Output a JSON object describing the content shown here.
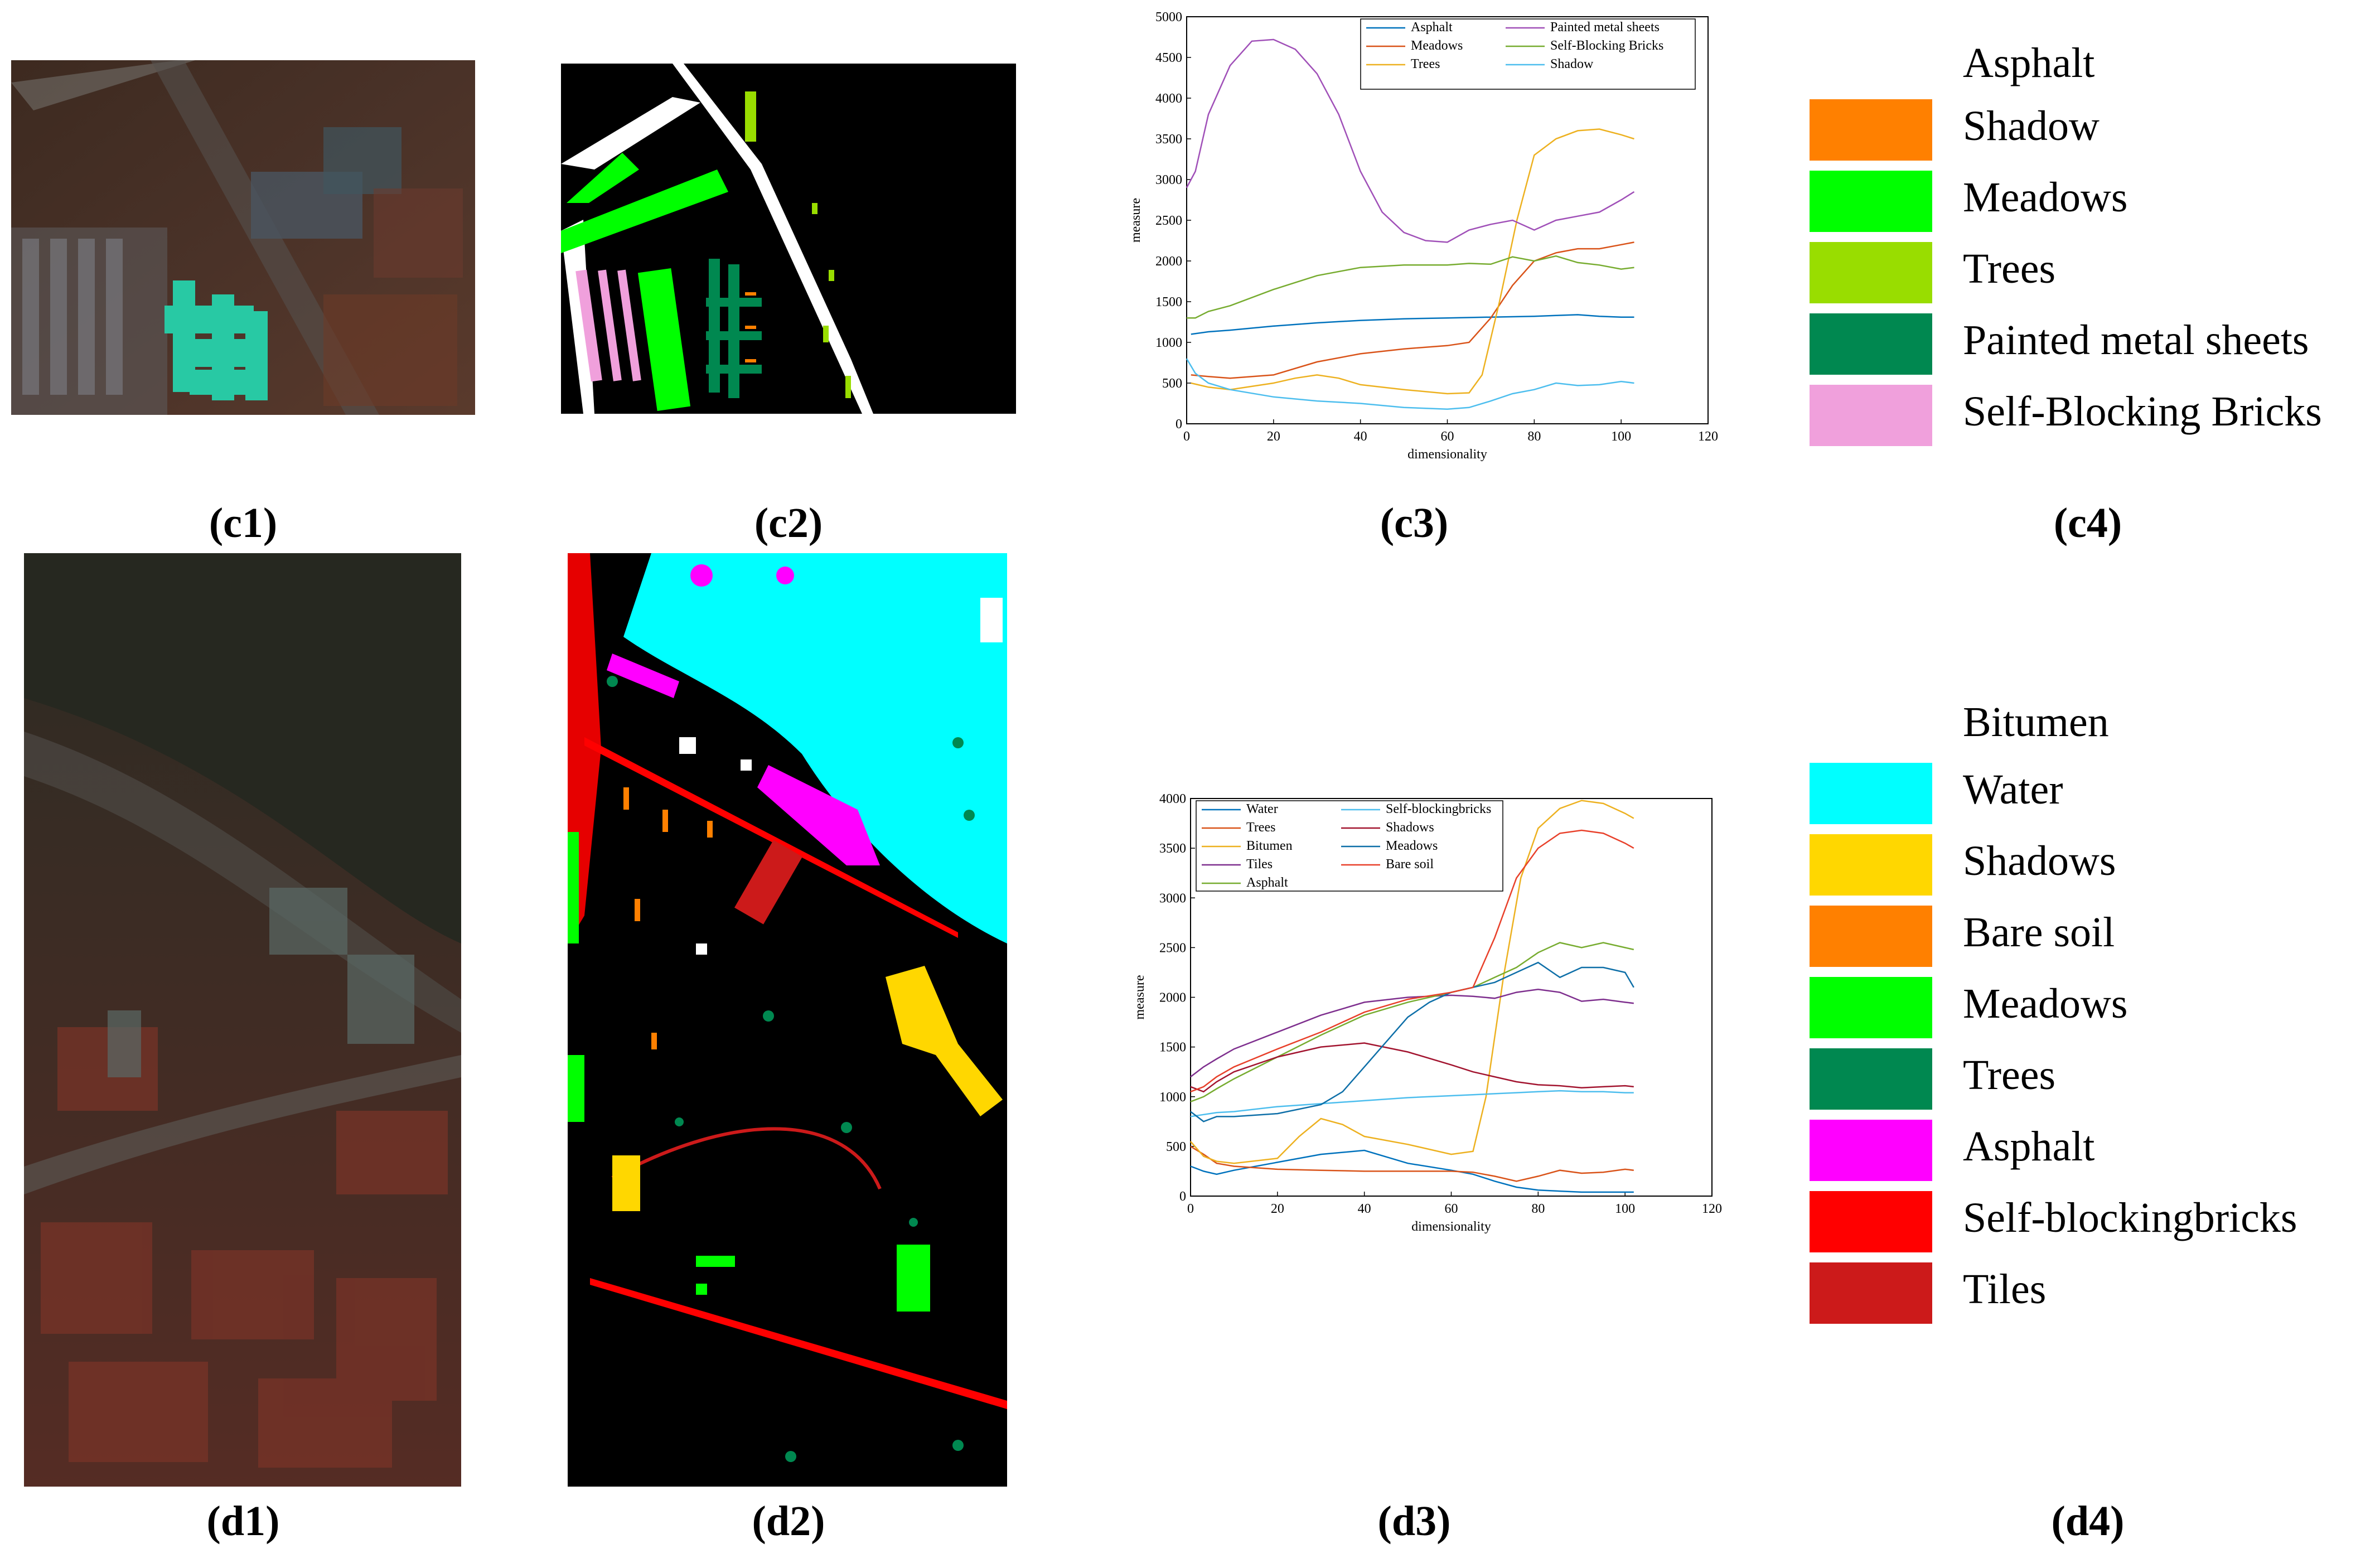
{
  "captions": {
    "c1": "(c1)",
    "c2": "(c2)",
    "c3": "(c3)",
    "c4": "(c4)",
    "d1": "(d1)",
    "d2": "(d2)",
    "d3": "(d3)",
    "d4": "(d4)"
  },
  "legend_c4": {
    "header": "Asphalt",
    "items": [
      {
        "label": "Shadow",
        "color": "#ff8000"
      },
      {
        "label": "Meadows",
        "color": "#00ff00"
      },
      {
        "label": "Trees",
        "color": "#99dd00"
      },
      {
        "label": "Painted metal sheets",
        "color": "#008850"
      },
      {
        "label": "Self-Blocking Bricks",
        "color": "#f0a0dc"
      }
    ]
  },
  "legend_d4": {
    "header": "Bitumen",
    "items": [
      {
        "label": "Water",
        "color": "#00ffff"
      },
      {
        "label": "Shadows",
        "color": "#ffd700"
      },
      {
        "label": "Bare soil",
        "color": "#ff8000"
      },
      {
        "label": "Meadows",
        "color": "#00ff00"
      },
      {
        "label": "Trees",
        "color": "#008850"
      },
      {
        "label": "Asphalt",
        "color": "#ff00ff"
      },
      {
        "label": "Self-blockingbricks",
        "color": "#ff0000"
      },
      {
        "label": "Tiles",
        "color": "#cc1a1a"
      }
    ]
  },
  "chart_data": [
    {
      "id": "c3",
      "type": "line",
      "xlabel": "dimensionality",
      "ylabel": "measure",
      "xlim": [
        0,
        120
      ],
      "ylim": [
        0,
        5000
      ],
      "xticks": [
        0,
        20,
        40,
        60,
        80,
        100,
        120
      ],
      "yticks": [
        0,
        500,
        1000,
        1500,
        2000,
        2500,
        3000,
        3500,
        4000,
        4500,
        5000
      ],
      "legend_columns": 2,
      "legend_placement": "top-right",
      "series": [
        {
          "name": "Asphalt",
          "color": "#0072bd",
          "x": [
            1,
            5,
            10,
            20,
            30,
            40,
            50,
            60,
            70,
            80,
            85,
            90,
            95,
            100,
            103
          ],
          "y": [
            1100,
            1130,
            1150,
            1200,
            1240,
            1270,
            1290,
            1300,
            1310,
            1320,
            1330,
            1340,
            1320,
            1310,
            1310
          ]
        },
        {
          "name": "Meadows",
          "color": "#d95319",
          "x": [
            1,
            5,
            10,
            20,
            30,
            40,
            50,
            60,
            65,
            70,
            75,
            80,
            85,
            90,
            95,
            100,
            103
          ],
          "y": [
            600,
            580,
            560,
            600,
            760,
            860,
            920,
            960,
            1000,
            1300,
            1700,
            2000,
            2100,
            2150,
            2150,
            2200,
            2230
          ]
        },
        {
          "name": "Trees",
          "color": "#edb120",
          "x": [
            1,
            5,
            10,
            20,
            25,
            30,
            35,
            40,
            50,
            60,
            65,
            68,
            72,
            76,
            80,
            85,
            90,
            95,
            100,
            103
          ],
          "y": [
            500,
            450,
            420,
            500,
            560,
            600,
            560,
            480,
            420,
            370,
            380,
            600,
            1500,
            2500,
            3300,
            3500,
            3600,
            3620,
            3550,
            3500
          ]
        },
        {
          "name": "Painted metal sheets",
          "color": "#a050b8",
          "x": [
            0,
            2,
            5,
            10,
            15,
            20,
            25,
            30,
            35,
            40,
            45,
            50,
            55,
            60,
            65,
            70,
            75,
            80,
            85,
            90,
            95,
            100,
            103
          ],
          "y": [
            2900,
            3100,
            3800,
            4400,
            4700,
            4720,
            4600,
            4300,
            3800,
            3100,
            2600,
            2350,
            2250,
            2230,
            2380,
            2450,
            2500,
            2380,
            2500,
            2550,
            2600,
            2750,
            2850
          ]
        },
        {
          "name": "Self-Blocking Bricks",
          "color": "#77ac30",
          "x": [
            0,
            2,
            5,
            10,
            20,
            30,
            40,
            50,
            60,
            65,
            70,
            75,
            80,
            85,
            90,
            95,
            100,
            103
          ],
          "y": [
            1300,
            1300,
            1380,
            1450,
            1650,
            1820,
            1920,
            1950,
            1950,
            1970,
            1960,
            2050,
            2000,
            2060,
            1980,
            1950,
            1900,
            1920
          ]
        },
        {
          "name": "Shadow",
          "color": "#4dbeee",
          "x": [
            0,
            2,
            5,
            10,
            20,
            30,
            40,
            50,
            60,
            65,
            70,
            75,
            80,
            85,
            90,
            95,
            100,
            103
          ],
          "y": [
            800,
            620,
            500,
            420,
            330,
            280,
            250,
            200,
            180,
            200,
            280,
            370,
            420,
            500,
            470,
            480,
            520,
            500
          ]
        }
      ]
    },
    {
      "id": "d3",
      "type": "line",
      "xlabel": "dimensionality",
      "ylabel": "measure",
      "xlim": [
        0,
        120
      ],
      "ylim": [
        0,
        4000
      ],
      "xticks": [
        0,
        20,
        40,
        60,
        80,
        100,
        120
      ],
      "yticks": [
        0,
        500,
        1000,
        1500,
        2000,
        2500,
        3000,
        3500,
        4000
      ],
      "legend_columns": 2,
      "legend_placement": "top-left",
      "series": [
        {
          "name": "Water",
          "color": "#0072bd",
          "x": [
            0,
            3,
            6,
            10,
            20,
            30,
            40,
            50,
            60,
            65,
            70,
            75,
            80,
            85,
            90,
            95,
            100,
            102
          ],
          "y": [
            300,
            250,
            220,
            260,
            340,
            420,
            460,
            330,
            260,
            220,
            150,
            90,
            60,
            50,
            40,
            40,
            40,
            40
          ]
        },
        {
          "name": "Trees",
          "color": "#d95319",
          "x": [
            0,
            3,
            6,
            10,
            20,
            30,
            40,
            50,
            60,
            65,
            70,
            75,
            80,
            85,
            90,
            95,
            100,
            102
          ],
          "y": [
            500,
            420,
            330,
            300,
            270,
            260,
            250,
            250,
            250,
            240,
            200,
            150,
            200,
            260,
            230,
            240,
            270,
            260
          ]
        },
        {
          "name": "Bitumen",
          "color": "#edb120",
          "x": [
            0,
            3,
            6,
            10,
            20,
            25,
            30,
            35,
            40,
            50,
            60,
            65,
            68,
            72,
            76,
            80,
            85,
            90,
            95,
            100,
            102
          ],
          "y": [
            550,
            400,
            350,
            330,
            380,
            600,
            780,
            720,
            600,
            520,
            420,
            450,
            1000,
            2200,
            3200,
            3700,
            3900,
            3980,
            3950,
            3850,
            3800
          ]
        },
        {
          "name": "Tiles",
          "color": "#7e2f8e",
          "x": [
            0,
            3,
            6,
            10,
            20,
            30,
            40,
            50,
            60,
            65,
            70,
            75,
            80,
            85,
            90,
            95,
            100,
            102
          ],
          "y": [
            1200,
            1300,
            1380,
            1480,
            1650,
            1820,
            1950,
            2000,
            2020,
            2010,
            1990,
            2050,
            2080,
            2050,
            1960,
            1980,
            1950,
            1940
          ]
        },
        {
          "name": "Asphalt",
          "color": "#77ac30",
          "x": [
            0,
            3,
            6,
            10,
            20,
            30,
            40,
            50,
            60,
            65,
            70,
            75,
            80,
            85,
            90,
            95,
            100,
            102
          ],
          "y": [
            950,
            1000,
            1080,
            1180,
            1400,
            1620,
            1820,
            1950,
            2050,
            2100,
            2200,
            2300,
            2450,
            2550,
            2500,
            2550,
            2500,
            2480
          ]
        },
        {
          "name": "Self-blockingbricks",
          "color": "#4dbeee",
          "x": [
            0,
            3,
            6,
            10,
            20,
            30,
            40,
            50,
            60,
            65,
            70,
            75,
            80,
            85,
            90,
            95,
            100,
            102
          ],
          "y": [
            800,
            820,
            840,
            850,
            900,
            930,
            960,
            990,
            1010,
            1020,
            1030,
            1040,
            1050,
            1060,
            1050,
            1050,
            1040,
            1040
          ]
        },
        {
          "name": "Shadows",
          "color": "#a2142f",
          "x": [
            0,
            3,
            6,
            10,
            20,
            30,
            40,
            50,
            60,
            65,
            70,
            75,
            80,
            85,
            90,
            95,
            100,
            102
          ],
          "y": [
            1100,
            1050,
            1150,
            1250,
            1400,
            1500,
            1540,
            1450,
            1320,
            1250,
            1200,
            1150,
            1120,
            1110,
            1090,
            1100,
            1110,
            1100
          ]
        },
        {
          "name": "Meadows",
          "color": "#0e6fa8",
          "x": [
            0,
            3,
            6,
            10,
            20,
            30,
            35,
            40,
            45,
            50,
            55,
            60,
            65,
            70,
            75,
            80,
            85,
            90,
            95,
            100,
            102
          ],
          "y": [
            850,
            750,
            800,
            800,
            830,
            920,
            1050,
            1300,
            1550,
            1800,
            1950,
            2050,
            2100,
            2150,
            2250,
            2350,
            2200,
            2300,
            2300,
            2250,
            2100
          ]
        },
        {
          "name": "Bare soil",
          "color": "#e8402a",
          "x": [
            0,
            3,
            6,
            10,
            20,
            30,
            40,
            50,
            60,
            65,
            70,
            75,
            80,
            85,
            90,
            95,
            100,
            102
          ],
          "y": [
            1050,
            1100,
            1200,
            1300,
            1480,
            1650,
            1850,
            1980,
            2050,
            2100,
            2600,
            3200,
            3500,
            3650,
            3680,
            3650,
            3550,
            3500
          ]
        }
      ]
    }
  ]
}
